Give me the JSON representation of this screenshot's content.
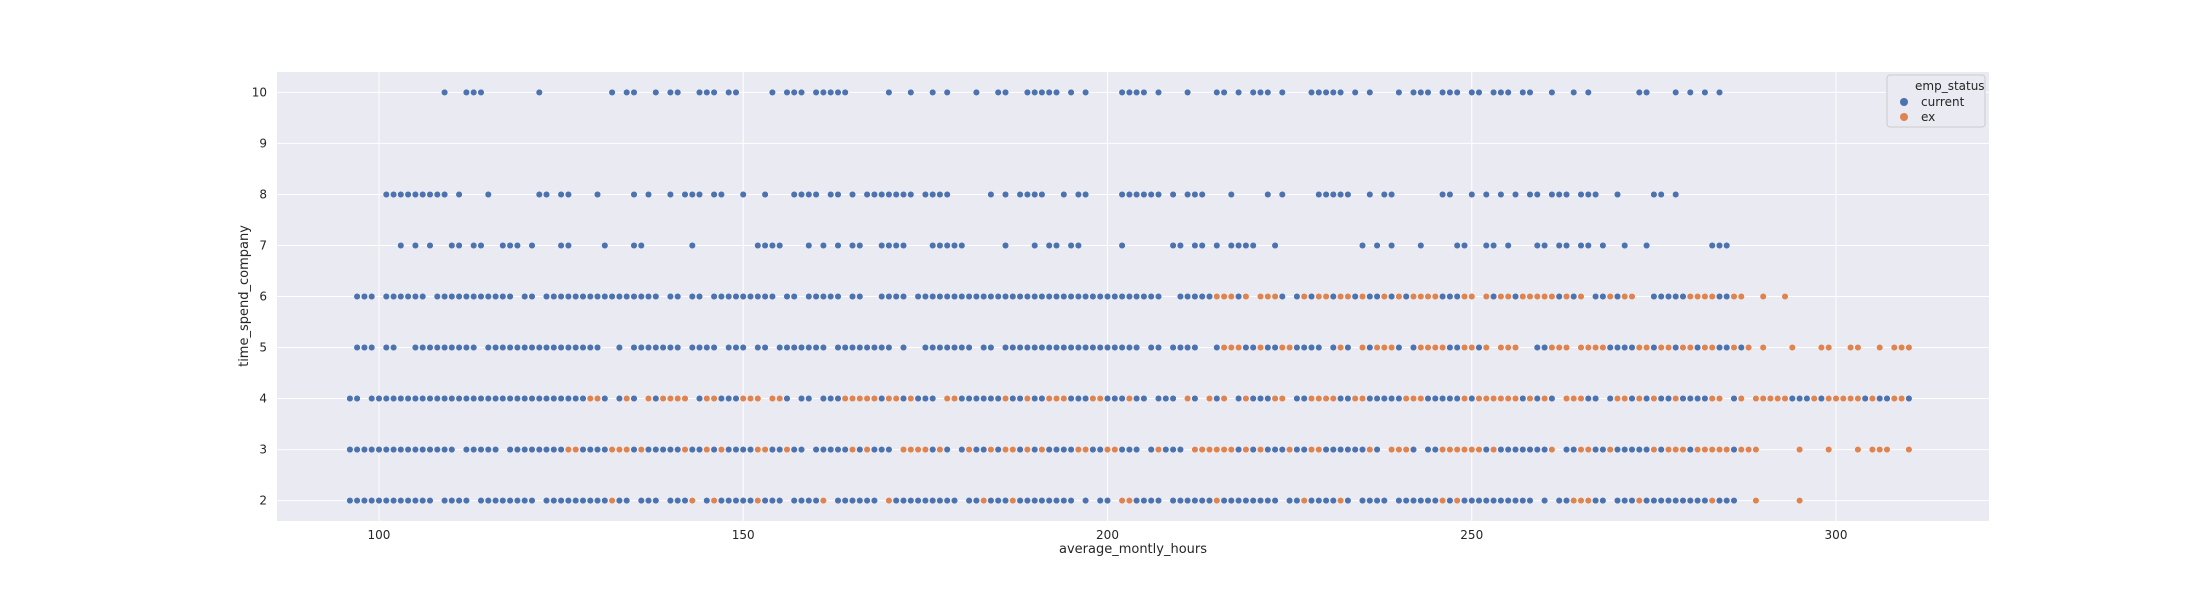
{
  "chart_data": {
    "type": "scatter",
    "title": "",
    "xlabel": "average_montly_hours",
    "ylabel": "time_spend_company",
    "xlim": [
      86,
      321
    ],
    "ylim": [
      1.6,
      10.4
    ],
    "x_ticks": [
      100,
      150,
      200,
      250,
      300
    ],
    "y_ticks": [
      2,
      3,
      4,
      5,
      6,
      7,
      8,
      9,
      10
    ],
    "grid": true,
    "legend": {
      "title": "emp_status",
      "placement": "top-right",
      "entries": [
        {
          "label": "current",
          "color": "#4c72b0"
        },
        {
          "label": "ex",
          "color": "#dd8452"
        }
      ]
    },
    "series": [
      {
        "name": "current",
        "color": "#4c72b0",
        "ranges": [
          {
            "y": 2,
            "x_start": 96,
            "x_end": 286,
            "density": 0.85
          },
          {
            "y": 3,
            "x_start": 96,
            "x_end": 287,
            "density": 0.9
          },
          {
            "y": 4,
            "x_start": 96,
            "x_end": 310,
            "density": 0.85
          },
          {
            "y": 5,
            "x_start": 97,
            "x_end": 287,
            "density": 0.8
          },
          {
            "y": 6,
            "x_start": 97,
            "x_end": 287,
            "density": 0.85
          },
          {
            "y": 7,
            "x_start": 102,
            "x_end": 287,
            "density": 0.4
          },
          {
            "y": 8,
            "x_start": 100,
            "x_end": 279,
            "density": 0.45
          },
          {
            "y": 10,
            "x_start": 108,
            "x_end": 284,
            "density": 0.45
          }
        ]
      },
      {
        "name": "ex",
        "color": "#dd8452",
        "ranges": [
          {
            "y": 2,
            "x_start": 128,
            "x_end": 296,
            "density": 0.12
          },
          {
            "y": 3,
            "x_start": 126,
            "x_end": 310,
            "density": 0.35
          },
          {
            "y": 4,
            "x_start": 129,
            "x_end": 310,
            "density": 0.45
          },
          {
            "y": 5,
            "x_start": 216,
            "x_end": 310,
            "density": 0.55
          },
          {
            "y": 6,
            "x_start": 215,
            "x_end": 293,
            "density": 0.45
          }
        ]
      }
    ]
  }
}
